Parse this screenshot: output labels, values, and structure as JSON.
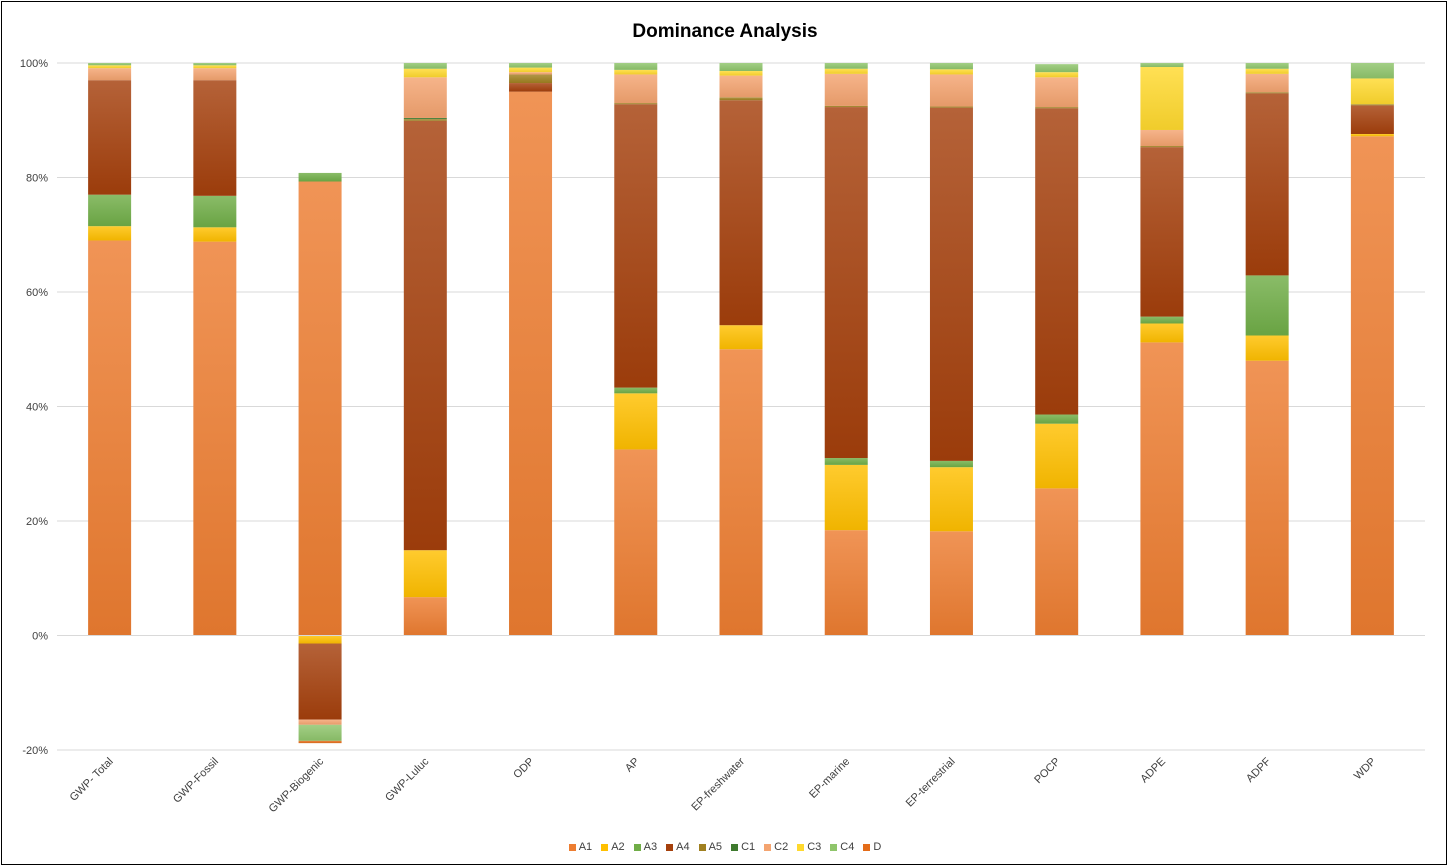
{
  "chart_data": {
    "type": "bar",
    "stacked": "percent",
    "title": "Dominance Analysis",
    "xlabel": "",
    "ylabel": "",
    "ylim": [
      -20,
      100
    ],
    "yticks": [
      -20,
      0,
      20,
      40,
      60,
      80,
      100
    ],
    "ytick_labels": [
      "-20%",
      "0%",
      "20%",
      "40%",
      "60%",
      "80%",
      "100%"
    ],
    "grid": true,
    "legend_position": "bottom",
    "categories": [
      "GWP- Total",
      "GWP-Fossil",
      "GWP-Biogenic",
      "GWP-Luluc",
      "ODP",
      "AP",
      "EP-freshwater",
      "EP-marine",
      "EP-terrestrial",
      "POCP",
      "ADPE",
      "ADPF",
      "WDP"
    ],
    "series": [
      {
        "name": "A1",
        "color": "#ED7D31",
        "values": [
          69,
          68.8,
          79.3,
          6.7,
          95,
          32.5,
          50,
          18.4,
          18.2,
          25.7,
          51.2,
          48,
          87.2
        ]
      },
      {
        "name": "A2",
        "color": "#FFC000",
        "values": [
          2.5,
          2.5,
          -1.4,
          8.2,
          0,
          9.8,
          4.2,
          11.4,
          11.2,
          11.3,
          3.3,
          4.4,
          0.4
        ]
      },
      {
        "name": "A3",
        "color": "#70AD47",
        "values": [
          5.5,
          5.5,
          1.5,
          0,
          0,
          1,
          0,
          1.2,
          1.1,
          1.6,
          1.2,
          10.5,
          0
        ]
      },
      {
        "name": "A4",
        "color": "#A5400C",
        "values": [
          20,
          20.2,
          -13.3,
          75,
          1.5,
          49.5,
          39.3,
          61.3,
          61.7,
          53.5,
          29.6,
          31.8,
          5
        ]
      },
      {
        "name": "A5",
        "color": "#A08020",
        "values": [
          0,
          0,
          0,
          0.3,
          1.5,
          0.2,
          0.5,
          0.2,
          0.2,
          0.2,
          0.2,
          0.2,
          0.2
        ]
      },
      {
        "name": "C1",
        "color": "#3E7A2E",
        "values": [
          0,
          0,
          0,
          0.2,
          0,
          0,
          0,
          0,
          0,
          0,
          0,
          0,
          0
        ]
      },
      {
        "name": "C2",
        "color": "#F4A470",
        "values": [
          2.1,
          2.1,
          -0.9,
          7.1,
          0.4,
          5,
          3.8,
          5.6,
          5.6,
          5.2,
          2.8,
          3.2,
          0
        ]
      },
      {
        "name": "C3",
        "color": "#FFD92E",
        "values": [
          0.5,
          0.5,
          0,
          1.5,
          0.8,
          0.8,
          0.8,
          0.9,
          0.9,
          0.9,
          11,
          0.9,
          4.5
        ]
      },
      {
        "name": "C4",
        "color": "#8FC56B",
        "values": [
          0.4,
          0.4,
          -2.8,
          1,
          0.8,
          1.2,
          1.4,
          1,
          1.1,
          1.4,
          0.7,
          1,
          2.7
        ]
      },
      {
        "name": "D",
        "color": "#E46C19",
        "values": [
          0,
          0,
          -0.4,
          0,
          0,
          0,
          0,
          0,
          0,
          0,
          0,
          0,
          0
        ]
      }
    ]
  }
}
